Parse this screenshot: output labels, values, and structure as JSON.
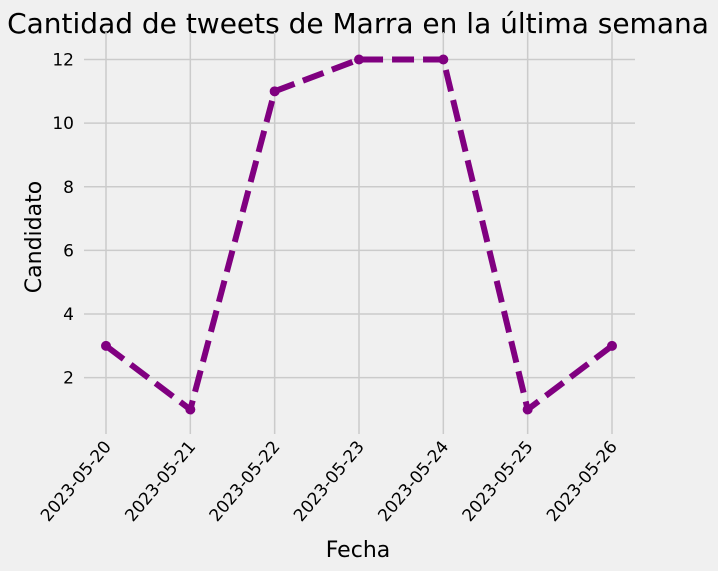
{
  "chart_data": {
    "type": "line",
    "title": "Cantidad de tweets de Marra en la última semana",
    "xlabel": "Fecha",
    "ylabel": "Candidato",
    "x": [
      "2023-05-20",
      "2023-05-21",
      "2023-05-22",
      "2023-05-23",
      "2023-05-24",
      "2023-05-25",
      "2023-05-26"
    ],
    "series": [
      {
        "values": [
          3,
          1,
          11,
          12,
          12,
          1,
          3
        ]
      }
    ],
    "yticks": [
      2,
      4,
      6,
      8,
      10,
      12
    ],
    "ylim": [
      0.45,
      12.55
    ],
    "grid": true,
    "line_style": "dashed",
    "marker": "circle",
    "colors": {
      "line": "#800080",
      "background": "#f0f0f0",
      "grid": "#cbcbcb"
    }
  }
}
